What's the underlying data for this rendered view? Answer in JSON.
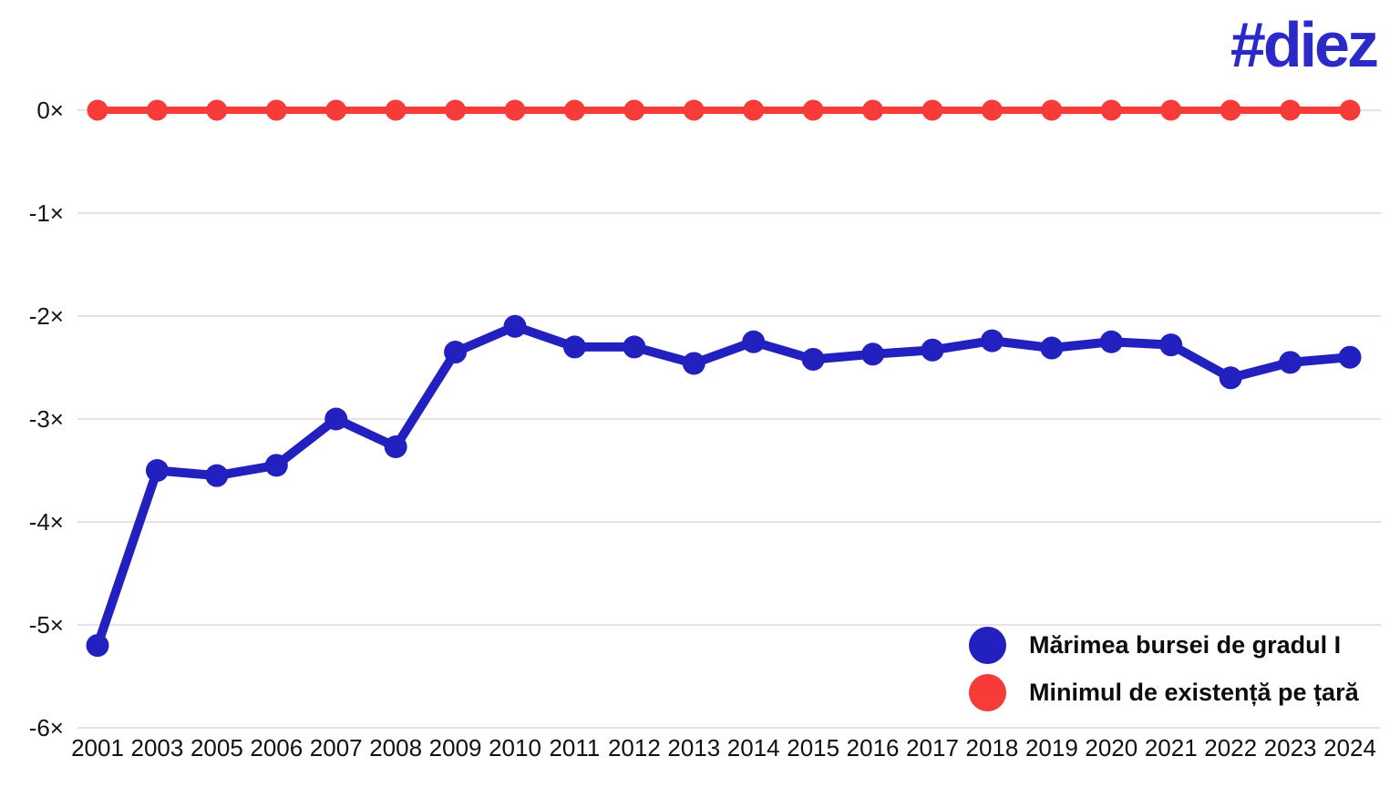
{
  "logo": {
    "text": "#diez",
    "color": "#2b2ac9"
  },
  "legend": {
    "items": [
      {
        "label": "Mărimea bursei de gradul I",
        "color": "#2320c0"
      },
      {
        "label": "Minimul de existență pe țară",
        "color": "#f63b38"
      }
    ]
  },
  "chart_data": {
    "type": "line",
    "title": "",
    "xlabel": "",
    "ylabel": "",
    "categories": [
      "2001",
      "2003",
      "2005",
      "2006",
      "2007",
      "2008",
      "2009",
      "2010",
      "2011",
      "2012",
      "2013",
      "2014",
      "2015",
      "2016",
      "2017",
      "2018",
      "2019",
      "2020",
      "2021",
      "2022",
      "2023",
      "2024"
    ],
    "series": [
      {
        "name": "Mărimea bursei de gradul I",
        "color": "#2320c0",
        "values": [
          -5.2,
          -3.5,
          -3.55,
          -3.45,
          -3.0,
          -3.27,
          -2.35,
          -2.1,
          -2.3,
          -2.3,
          -2.46,
          -2.25,
          -2.42,
          -2.37,
          -2.33,
          -2.24,
          -2.31,
          -2.25,
          -2.28,
          -2.6,
          -2.45,
          -2.4
        ]
      },
      {
        "name": "Minimul de existență pe țară",
        "color": "#f63b38",
        "values": [
          0,
          0,
          0,
          0,
          0,
          0,
          0,
          0,
          0,
          0,
          0,
          0,
          0,
          0,
          0,
          0,
          0,
          0,
          0,
          0,
          0,
          0
        ]
      }
    ],
    "yticks": [
      "0×",
      "-1×",
      "-2×",
      "-3×",
      "-4×",
      "-5×",
      "-6×"
    ],
    "ytick_values": [
      0,
      -1,
      -2,
      -3,
      -4,
      -5,
      -6
    ],
    "ylim": [
      -6,
      0
    ],
    "grid": true,
    "grid_color": "#e4e4e4",
    "tick_color": "#151515",
    "legend_position": "bottom-right"
  }
}
